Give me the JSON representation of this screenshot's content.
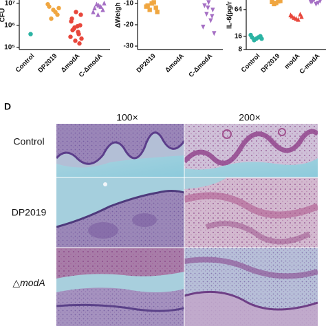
{
  "chart_data": [
    {
      "type": "strip",
      "y_label": "CFU",
      "log_scale": true,
      "categories": [
        "Control",
        "DP2019",
        "ΔmodA",
        "C-ΔmodA"
      ],
      "colors": [
        "#2bb3a3",
        "#f0a640",
        "#e8463b",
        "#a56fc4"
      ],
      "markers": [
        "circle",
        "circle",
        "circle",
        "triangle"
      ],
      "values": [
        [
          400000
        ],
        [
          5000000,
          7000000,
          3000000,
          2000000,
          4000000,
          9000000,
          6000000
        ],
        [
          4000000,
          2000000,
          1000000,
          700000,
          500000,
          300000,
          250000,
          200000,
          150000,
          600000,
          900000,
          1500000,
          3000000,
          800000,
          400000
        ],
        [
          8000000,
          6000000,
          5000000,
          9000000,
          7000000,
          4000000,
          10000000,
          3000000
        ]
      ],
      "ylim": [
        80000,
        14000000
      ],
      "yticks": [
        {
          "value": 10000000,
          "label": "10⁷"
        },
        {
          "value": 1000000,
          "label": "10⁶"
        },
        {
          "value": 100000,
          "label": "10⁵"
        }
      ]
    },
    {
      "type": "strip",
      "y_label": "ΔWeigh",
      "log_scale": false,
      "categories": [
        "DP2019",
        "ΔmodA",
        "C-ΔmodA"
      ],
      "colors": [
        "#f0a640",
        "#e8463b",
        "#a56fc4"
      ],
      "markers": [
        "square",
        "circle",
        "triangle-down"
      ],
      "values": [
        [
          -10,
          -11,
          -12,
          -13,
          -9.5,
          -11.5,
          -14
        ],
        [],
        [
          -9.5,
          -11,
          -13,
          -15,
          -18,
          -21,
          -24,
          -12,
          -16
        ]
      ],
      "ylim": [
        -31.6,
        -8.4
      ],
      "yticks": [
        -10,
        -20,
        -30
      ]
    },
    {
      "type": "strip",
      "y_label": "IL-6(pg/r",
      "log_scale": true,
      "categories": [
        "Control",
        "DP2019",
        "modA",
        "C-modA"
      ],
      "colors": [
        "#2bb3a3",
        "#f0a640",
        "#e8463b",
        "#a56fc4"
      ],
      "markers": [
        "circle",
        "square",
        "triangle",
        "triangle-down"
      ],
      "values": [
        [
          14,
          15,
          16,
          13,
          15,
          17,
          14
        ],
        [
          90,
          95,
          100,
          85,
          98
        ],
        [
          40,
          45,
          50,
          42,
          38,
          48,
          44
        ],
        [
          85,
          95,
          100,
          105,
          90,
          98
        ]
      ],
      "ylim": [
        8,
        105
      ],
      "yticks": [
        64,
        16,
        8
      ]
    }
  ],
  "panel": {
    "label": "D",
    "columns": [
      "100×",
      "200×"
    ],
    "rows": [
      {
        "text": "Control"
      },
      {
        "text": "DP2019"
      },
      {
        "prefix": "△",
        "italic": "modA"
      }
    ]
  }
}
